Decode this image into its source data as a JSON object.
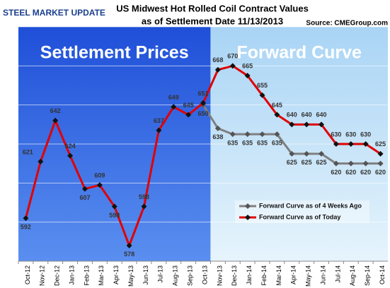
{
  "chart_data": {
    "type": "line",
    "title": "US Midwest Hot Rolled Coil Contract  Values",
    "subtitle": "as of Settlement Date 11/13/2013",
    "source": "Source: CMEGroup.com",
    "logo": "STEEL MARKET UPDATE",
    "annotations": [
      "Settlement Prices",
      "Forward Curve"
    ],
    "categories": [
      "Oct-12",
      "Nov-12",
      "Dec-12",
      "Jan-13",
      "Feb-13",
      "Mar-13",
      "Apr-13",
      "May-13",
      "Jun-13",
      "Jul-13",
      "Aug-13",
      "Sep-13",
      "Oct-13",
      "Nov-13",
      "Dec-13",
      "Jan-14",
      "Feb-14",
      "Mar-14",
      "Apr-14",
      "May-14",
      "Jun-14",
      "Jul-14",
      "Aug-14",
      "Sep-14",
      "Oct-14"
    ],
    "series": [
      {
        "name": "Forward Curve as of 4 Weeks Ago",
        "color": "#808080",
        "values": [
          null,
          null,
          null,
          null,
          null,
          null,
          null,
          null,
          null,
          null,
          null,
          null,
          650,
          638,
          635,
          635,
          635,
          635,
          625,
          625,
          625,
          620,
          620,
          620,
          620
        ]
      },
      {
        "name": "Forward Curve as of Today",
        "color": "#e00000",
        "values": [
          592,
          621,
          642,
          624,
          607,
          609,
          598,
          578,
          598,
          637,
          649,
          645,
          651,
          668,
          670,
          665,
          655,
          645,
          640,
          640,
          640,
          630,
          630,
          630,
          625
        ]
      }
    ],
    "ylim": [
      570,
      690
    ],
    "yticks": [
      570,
      590,
      610,
      630,
      650,
      670,
      690
    ],
    "grid": true,
    "legend": "lower right"
  }
}
